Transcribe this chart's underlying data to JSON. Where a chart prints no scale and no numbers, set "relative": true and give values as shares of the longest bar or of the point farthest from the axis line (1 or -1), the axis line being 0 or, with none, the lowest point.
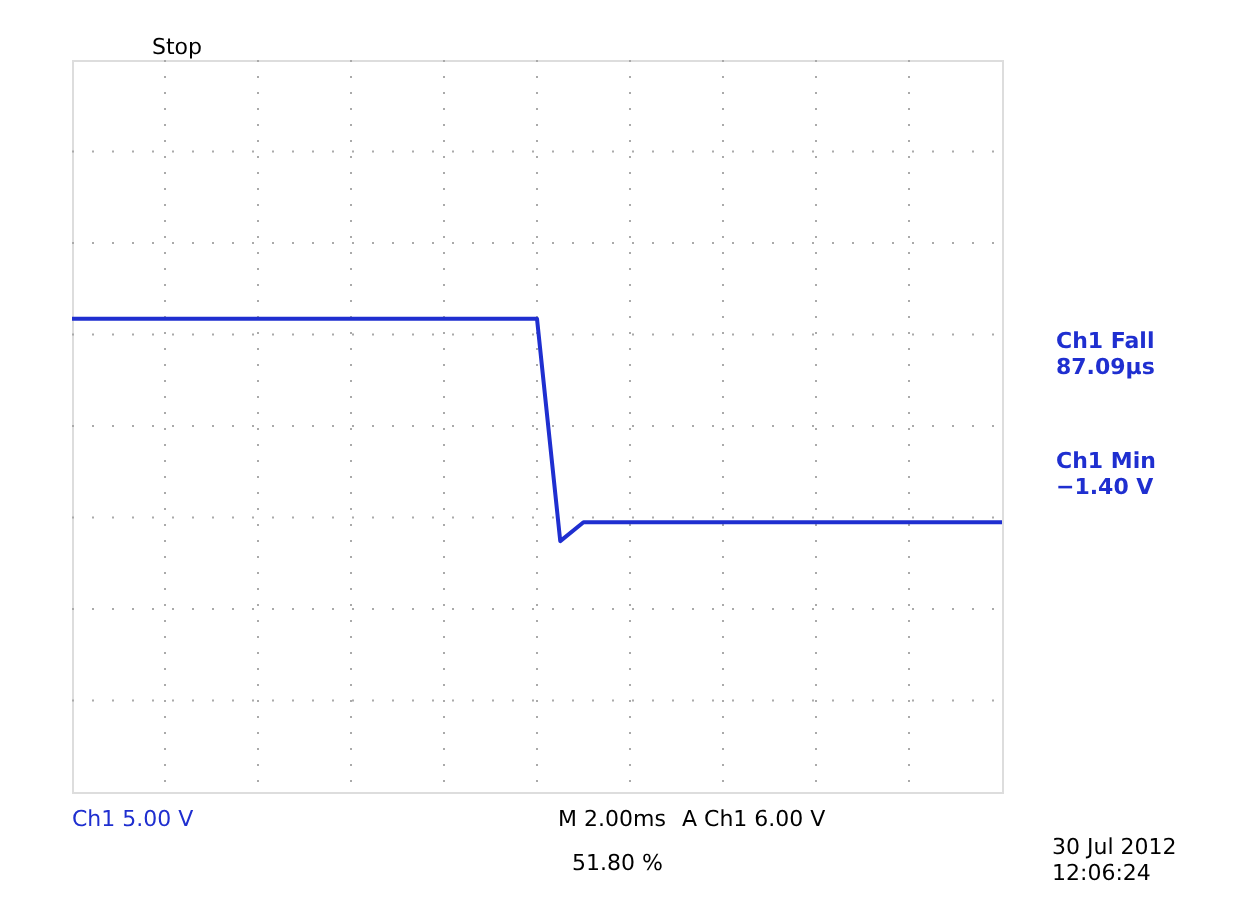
{
  "chart_data": {
    "type": "line",
    "relative": true,
    "grid": true,
    "line_style": "solid",
    "marker": "none",
    "categories": [
      null,
      null,
      null,
      null,
      null,
      null,
      null,
      null,
      null,
      null,
      null,
      null,
      null,
      null,
      null,
      null,
      null,
      null,
      null,
      null,
      null,
      null,
      null,
      null,
      null,
      null,
      null,
      null,
      null,
      null,
      null,
      null,
      null,
      null,
      null,
      null,
      null,
      null,
      null,
      null,
      null
    ],
    "series": [
      {
        "color": "#1f2fd0",
        "values": [
          1,
          1,
          1,
          1,
          1,
          1,
          1,
          1,
          1,
          1,
          1,
          1,
          1,
          1,
          1,
          1,
          1,
          1,
          1,
          1,
          1,
          0.53,
          0.57,
          0.57,
          0.57,
          0.57,
          0.57,
          0.57,
          0.57,
          0.57,
          0.57,
          0.57,
          0.57,
          0.57,
          0.57,
          0.57,
          0.57,
          0.57,
          0.57,
          0.57,
          0.57
        ]
      }
    ],
    "annotations": [
      "Stop",
      "Ch1 Fall\n87.09µs",
      "Ch1 Min\n−1.40 V",
      "Ch1  5.00 V",
      "M 2.00ms",
      "A  Ch1  6.00 V",
      "51.80 %",
      "30 Jul   2012\n12:06:24"
    ]
  }
}
